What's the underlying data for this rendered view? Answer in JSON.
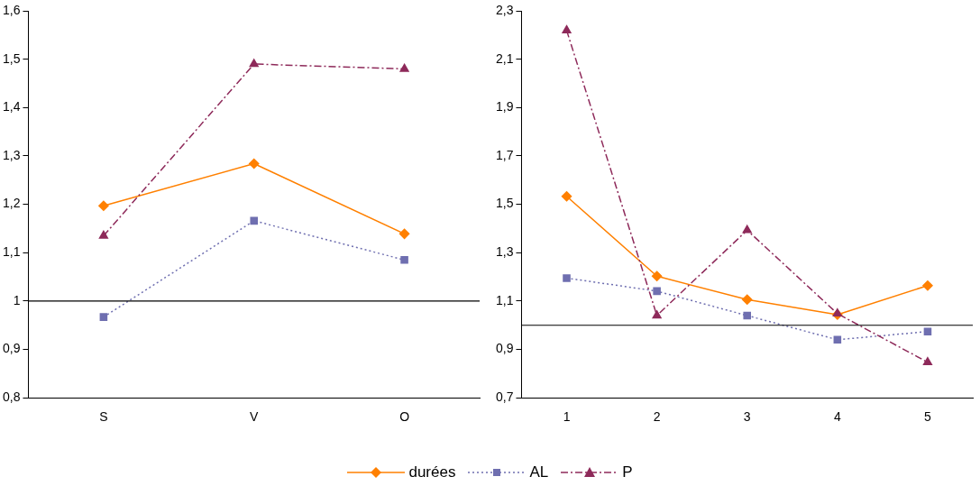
{
  "chart_data": [
    {
      "type": "line",
      "categories": [
        "S",
        "V",
        "O"
      ],
      "ylim": [
        0.8,
        1.6
      ],
      "yticks": [
        {
          "value": 0.8,
          "label": "0,8"
        },
        {
          "value": 0.9,
          "label": "0,9"
        },
        1,
        {
          "value": 1.1,
          "label": "1,1"
        },
        {
          "value": 1.2,
          "label": "1,2"
        },
        {
          "value": 1.3,
          "label": "1,3"
        },
        {
          "value": 1.4,
          "label": "1,4"
        },
        {
          "value": 1.5,
          "label": "1,5"
        },
        {
          "value": 1.6,
          "label": "1,6"
        }
      ],
      "grid": false,
      "legend": "bottom",
      "ref_lines": [
        {
          "axis": "y",
          "value": 1,
          "color": "#000000"
        }
      ],
      "series": [
        {
          "name": "durées",
          "color": "#ff8000",
          "marker": "diamond",
          "line_style": "solid",
          "values": [
            1.197,
            1.284,
            1.139
          ]
        },
        {
          "name": "AL",
          "color": "#6f6fb0",
          "marker": "square",
          "line_style": "dotted",
          "values": [
            0.967,
            1.166,
            1.085
          ]
        },
        {
          "name": "P",
          "color": "#8e2a5a",
          "marker": "triangle",
          "line_style": "dashed",
          "values": [
            1.135,
            1.49,
            1.48
          ]
        }
      ]
    },
    {
      "type": "line",
      "categories": [
        "1",
        "2",
        "3",
        "4",
        "5"
      ],
      "ylim": [
        0.7,
        2.3
      ],
      "yticks": [
        {
          "value": 0.7,
          "label": "0,7"
        },
        {
          "value": 0.9,
          "label": "0,9"
        },
        {
          "value": 1.1,
          "label": "1,1"
        },
        {
          "value": 1.3,
          "label": "1,3"
        },
        {
          "value": 1.5,
          "label": "1,5"
        },
        {
          "value": 1.7,
          "label": "1,7"
        },
        {
          "value": 1.9,
          "label": "1,9"
        },
        {
          "value": 2.1,
          "label": "2,1"
        },
        {
          "value": 2.3,
          "label": "2,3"
        }
      ],
      "grid": false,
      "legend": "bottom",
      "ref_lines": [
        {
          "axis": "y",
          "value": 1,
          "color": "#000000"
        }
      ],
      "series": [
        {
          "name": "durées",
          "color": "#ff8000",
          "marker": "diamond",
          "line_style": "solid",
          "values": [
            1.533,
            1.203,
            1.106,
            1.044,
            1.164
          ]
        },
        {
          "name": "AL",
          "color": "#6f6fb0",
          "marker": "square",
          "line_style": "dotted",
          "values": [
            1.195,
            1.141,
            1.04,
            0.94,
            0.974
          ]
        },
        {
          "name": "P",
          "color": "#8e2a5a",
          "marker": "triangle",
          "line_style": "dashed",
          "values": [
            2.219,
            1.04,
            1.393,
            1.048,
            0.847
          ]
        }
      ]
    }
  ]
}
